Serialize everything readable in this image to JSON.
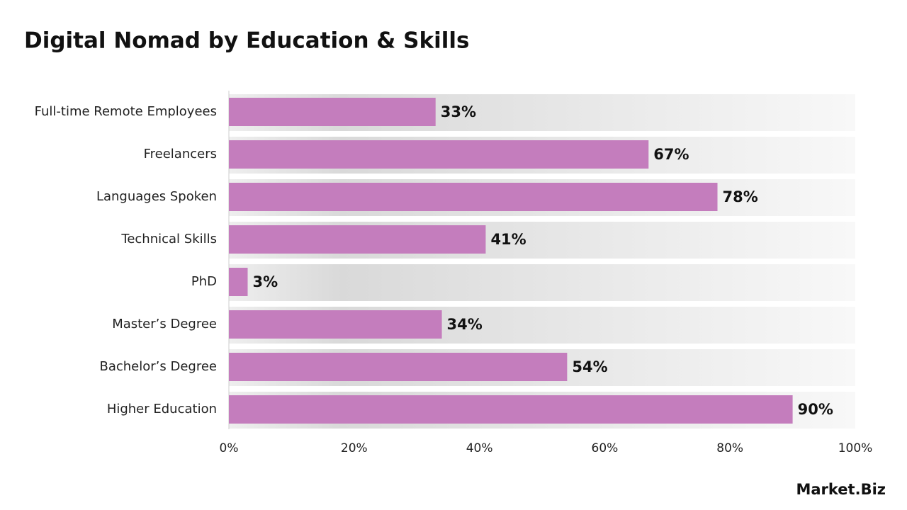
{
  "chart_data": {
    "type": "bar",
    "orientation": "horizontal",
    "title": "Digital Nomad by Education & Skills",
    "categories": [
      "Full-time Remote Employees",
      "Freelancers",
      "Languages Spoken",
      "Technical Skills",
      "PhD",
      "Master’s Degree",
      "Bachelor’s Degree",
      "Higher Education"
    ],
    "values": [
      33,
      67,
      78,
      41,
      3,
      34,
      54,
      90
    ],
    "value_labels": [
      "33%",
      "67%",
      "78%",
      "41%",
      "3%",
      "34%",
      "54%",
      "90%"
    ],
    "color": "#c47dbd",
    "xlim": [
      0,
      100
    ],
    "xticks": [
      {
        "value": 0,
        "label": "0%"
      },
      {
        "value": 20,
        "label": "20%"
      },
      {
        "value": 40,
        "label": "40%"
      },
      {
        "value": 60,
        "label": "60%"
      },
      {
        "value": 80,
        "label": "80%"
      },
      {
        "value": 100,
        "label": "100%"
      }
    ],
    "logo": "Market.Biz"
  }
}
